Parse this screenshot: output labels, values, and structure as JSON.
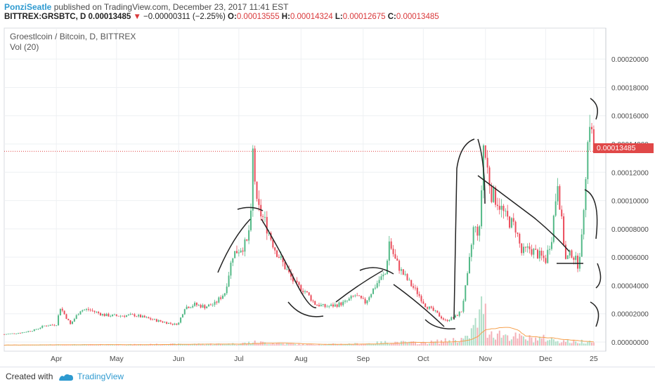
{
  "header": {
    "author": "PonziSeatle",
    "published": " published on TradingView.com, December 23, 2017 11:41 EST",
    "symbol": "BITTREX:GRSBTC, D",
    "last": "0.00013485",
    "arrow": "▼",
    "change": "−0.00000311 (−2.25%)",
    "o_label": "O:",
    "o_value": "0.00013555",
    "h_label": "H:",
    "h_value": "0.00014324",
    "l_label": "L:",
    "l_value": "0.00012675",
    "c_label": "C:",
    "c_value": "0.00013485"
  },
  "chart_title": "Groestlcoin / Bitcoin, D, BITTREX",
  "volume_title": "Vol (20)",
  "current_price_tag": "0.00013485",
  "footer": {
    "created_with": "Created with",
    "brand": "TradingView"
  },
  "colors": {
    "up": "#53b987",
    "down": "#eb4d5c",
    "price_line": "#e04848",
    "grid": "#eef0f3",
    "text": "#4a4a4a",
    "volume_ma": "#f6a04d",
    "drawing": "#222222"
  },
  "chart_data": {
    "type": "candlestick",
    "title": "Groestlcoin / Bitcoin, D, BITTREX",
    "y_ticks": [
      "0.00000000",
      "0.00002000",
      "0.00004000",
      "0.00006000",
      "0.00008000",
      "0.00010000",
      "0.00012000",
      "0.00014000",
      "0.00016000",
      "0.00018000",
      "0.00020000"
    ],
    "y_tick_values": [
      0,
      2e-05,
      4e-05,
      6e-05,
      8e-05,
      0.0001,
      0.00012,
      0.00014,
      0.00016,
      0.00018,
      0.0002
    ],
    "ylim": [
      -1.5e-06,
      0.000212
    ],
    "x_ticks": [
      "Apr",
      "May",
      "Jun",
      "Jul",
      "Aug",
      "Sep",
      "Oct",
      "Nov",
      "Dec",
      "25"
    ],
    "x_tick_days": [
      26,
      56,
      87,
      117,
      148,
      179,
      209,
      240,
      270,
      294
    ],
    "xlim": [
      0,
      300
    ],
    "current_price": 0.00013485,
    "approx_closes": [
      [
        0,
        5.5e-06
      ],
      [
        8,
        6.5e-06
      ],
      [
        15,
        8.5e-06
      ],
      [
        20,
        1.15e-05
      ],
      [
        26,
        1.25e-05
      ],
      [
        28,
        2.45e-05
      ],
      [
        33,
        1.25e-05
      ],
      [
        38,
        2.25e-05
      ],
      [
        42,
        2.3e-05
      ],
      [
        50,
        1.9e-05
      ],
      [
        56,
        1.85e-05
      ],
      [
        65,
        1.9e-05
      ],
      [
        75,
        1.55e-05
      ],
      [
        85,
        1.25e-05
      ],
      [
        87,
        1.35e-05
      ],
      [
        90,
        2.45e-05
      ],
      [
        95,
        2.65e-05
      ],
      [
        100,
        2.5e-05
      ],
      [
        105,
        2.7e-05
      ],
      [
        110,
        3.5e-05
      ],
      [
        114,
        6.2e-05
      ],
      [
        117,
        6.55e-05
      ],
      [
        121,
        7e-05
      ],
      [
        123,
        8.8e-05
      ],
      [
        124,
        0.000134
      ],
      [
        126,
        9.6e-05
      ],
      [
        130,
        8.5e-05
      ],
      [
        135,
        6.6e-05
      ],
      [
        140,
        5.3e-05
      ],
      [
        145,
        4.1e-05
      ],
      [
        150,
        3.6e-05
      ],
      [
        155,
        2.7e-05
      ],
      [
        160,
        2.5e-05
      ],
      [
        165,
        2.6e-05
      ],
      [
        170,
        2.8e-05
      ],
      [
        175,
        3.3e-05
      ],
      [
        180,
        2.8e-05
      ],
      [
        183,
        3.5e-05
      ],
      [
        187,
        4.4e-05
      ],
      [
        190,
        4.8e-05
      ],
      [
        192,
        7.1e-05
      ],
      [
        195,
        5.8e-05
      ],
      [
        198,
        5e-05
      ],
      [
        202,
        4.2e-05
      ],
      [
        206,
        3.5e-05
      ],
      [
        210,
        2.6e-05
      ],
      [
        215,
        2.1e-05
      ],
      [
        220,
        1.5e-05
      ],
      [
        225,
        1.8e-05
      ],
      [
        228,
        2.2e-05
      ],
      [
        231,
        4.6e-05
      ],
      [
        234,
        8e-05
      ],
      [
        237,
        7.8e-05
      ],
      [
        239,
        0.000139
      ],
      [
        241,
        0.000122
      ],
      [
        243,
        0.000105
      ],
      [
        246,
        0.0001
      ],
      [
        250,
        8.8e-05
      ],
      [
        255,
        8.1e-05
      ],
      [
        258,
        6.3e-05
      ],
      [
        262,
        6.6e-05
      ],
      [
        266,
        6.2e-05
      ],
      [
        270,
        5.8e-05
      ],
      [
        273,
        7.5e-05
      ],
      [
        276,
        0.000115
      ],
      [
        278,
        8.4e-05
      ],
      [
        280,
        5.8e-05
      ],
      [
        283,
        6.3e-05
      ],
      [
        286,
        5.5e-05
      ],
      [
        288,
        7.2e-05
      ],
      [
        290,
        0.000122
      ],
      [
        292,
        0.000158
      ],
      [
        294,
        0.0001348
      ]
    ],
    "approx_volumes": [
      [
        0,
        0.3
      ],
      [
        26,
        0.5
      ],
      [
        56,
        0.5
      ],
      [
        87,
        0.8
      ],
      [
        117,
        1
      ],
      [
        124,
        2
      ],
      [
        148,
        0.6
      ],
      [
        179,
        1
      ],
      [
        192,
        2
      ],
      [
        209,
        1.5
      ],
      [
        231,
        4
      ],
      [
        234,
        10
      ],
      [
        237,
        16
      ],
      [
        239,
        26
      ],
      [
        241,
        9
      ],
      [
        245,
        7
      ],
      [
        250,
        6
      ],
      [
        255,
        5
      ],
      [
        260,
        4
      ],
      [
        270,
        4
      ],
      [
        276,
        3
      ],
      [
        285,
        2
      ],
      [
        292,
        3
      ],
      [
        294,
        1.5
      ]
    ]
  }
}
